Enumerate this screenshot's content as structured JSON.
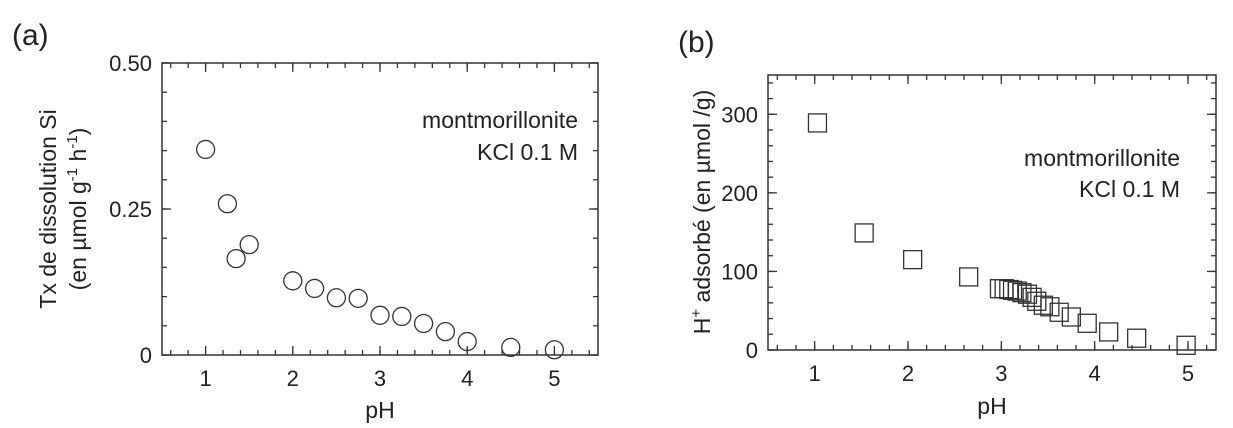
{
  "chart_data": [
    {
      "type": "scatter",
      "panel_label": "(a)",
      "xlabel": "pH",
      "ylabel": [
        "Tx de dissolution Si",
        "(en µmol g",
        "-1",
        " h",
        "-1",
        ")"
      ],
      "xlim": [
        0.5,
        5.5
      ],
      "ylim": [
        0,
        0.5
      ],
      "x_ticks": [
        1,
        2,
        3,
        4,
        5
      ],
      "x_tick_labels": [
        "1",
        "2",
        "3",
        "4",
        "5"
      ],
      "y_ticks": [
        0,
        0.25,
        0.5
      ],
      "y_tick_labels": [
        "0",
        "0.25",
        "0.50"
      ],
      "annotation": [
        "montmorillonite",
        "KCl 0.1 M"
      ],
      "marker": "circle",
      "grid": false,
      "x": [
        1.0,
        1.25,
        1.35,
        1.5,
        2.0,
        2.25,
        2.5,
        2.75,
        3.0,
        3.25,
        3.5,
        3.75,
        4.0,
        4.5,
        5.0
      ],
      "y": [
        0.352,
        0.259,
        0.165,
        0.189,
        0.127,
        0.114,
        0.098,
        0.097,
        0.068,
        0.066,
        0.054,
        0.04,
        0.023,
        0.013,
        0.009
      ]
    },
    {
      "type": "scatter",
      "panel_label": "(b)",
      "xlabel": "pH",
      "ylabel": [
        "H",
        "+",
        " adsorbé (en µmol /g)"
      ],
      "xlim": [
        0.5,
        5.3
      ],
      "ylim": [
        0,
        350
      ],
      "x_ticks": [
        1,
        2,
        3,
        4,
        5
      ],
      "x_tick_labels": [
        "1",
        "2",
        "3",
        "4",
        "5"
      ],
      "y_ticks": [
        0,
        100,
        200,
        300
      ],
      "y_tick_labels": [
        "0",
        "100",
        "200",
        "300"
      ],
      "annotation": [
        "montmorillonite",
        "KCl 0.1 M"
      ],
      "marker": "square",
      "grid": false,
      "x": [
        1.03,
        1.53,
        2.05,
        2.65,
        2.98,
        3.03,
        3.08,
        3.12,
        3.17,
        3.22,
        3.28,
        3.33,
        3.38,
        3.45,
        3.52,
        3.62,
        3.75,
        3.92,
        4.15,
        4.45,
        4.98
      ],
      "y": [
        289,
        149,
        115,
        93,
        78,
        78,
        77,
        76,
        75,
        73,
        71,
        67,
        62,
        57,
        55,
        48,
        42,
        34,
        23,
        15,
        6
      ]
    }
  ]
}
